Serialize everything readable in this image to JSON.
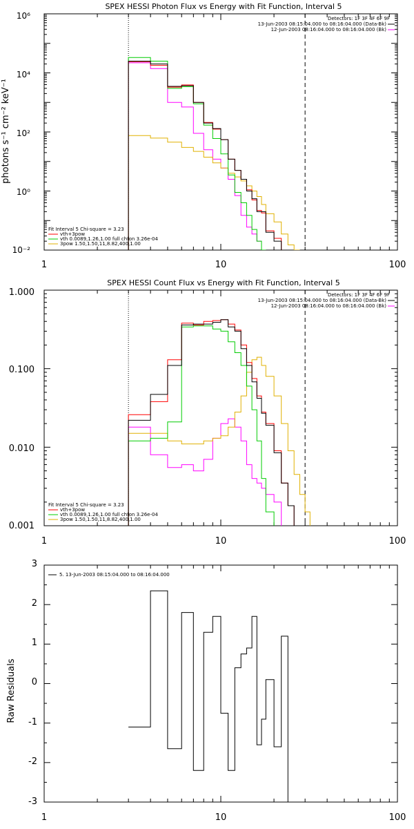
{
  "panels": [
    {
      "title": "SPEX HESSI Photon Flux vs Energy with Fit Function, Interval 5",
      "ylabel": "photons s⁻¹ cm⁻² keV⁻¹",
      "ytick_labels": [
        "10⁻²",
        "10⁰",
        "10²",
        "10⁴",
        "10⁶"
      ],
      "xtick_labels": [
        "1",
        "10",
        "100"
      ],
      "top_legend": [
        {
          "text": "Detectors: 1F 3F 4F 6F 9F",
          "color": ""
        },
        {
          "text": "13-Jun-2003 08:15:04.000 to 08:16:04.000 (Data-Bk)",
          "color": "#000000"
        },
        {
          "text": "12-Jun-2003 08:16:04.000 to 08:16:04.000 (Bk)",
          "color": "#ff00ff"
        }
      ],
      "fit_legend": [
        {
          "text": "Fit Interval 5   Chi-square = 3.23",
          "color": ""
        },
        {
          "text": "vth+3pow",
          "color": "#ff0000"
        },
        {
          "text": "vth 0.0089,1.26,1.00  full chfon 3.26e-04",
          "color": "#00cc00"
        },
        {
          "text": "3pow 1.50,1.50,11,8.82,400,1.00",
          "color": "#e0b000"
        }
      ]
    },
    {
      "title": "SPEX HESSI Count Flux vs Energy with Fit Function, Interval 5",
      "ylabel": "",
      "ytick_labels": [
        "0.001",
        "0.010",
        "0.100",
        "1.000"
      ],
      "xtick_labels": [
        "1",
        "10",
        "100"
      ],
      "top_legend": [
        {
          "text": "Detectors: 1F 3F 4F 6F 9F",
          "color": ""
        },
        {
          "text": "13-Jun-2003 08:15:04.000 to 08:16:04.000 (Data-Bk)",
          "color": "#000000"
        },
        {
          "text": "12-Jun-2003 08:16:04.000 to 08:16:04.000 (Bk)",
          "color": "#ff00ff"
        }
      ],
      "fit_legend": [
        {
          "text": "Fit Interval 5   Chi-square = 3.23",
          "color": ""
        },
        {
          "text": "vth+3pow",
          "color": "#ff0000"
        },
        {
          "text": "vth 0.0089,1.26,1.00  full chfon 3.26e-04",
          "color": "#00cc00"
        },
        {
          "text": "3pow 1.50,1.50,11,8.82,400,1.00",
          "color": "#e0b000"
        }
      ]
    },
    {
      "title": "",
      "ylabel": "Raw Residuals",
      "ytick_labels": [
        "-3",
        "-2",
        "-1",
        "0",
        "1",
        "2",
        "3"
      ],
      "xtick_labels": [
        "1",
        "10",
        "100"
      ],
      "top_legend": [
        {
          "text": "5. 13-Jun-2003 08:15:04.000 to 08:16:04.000",
          "color": "#000000"
        }
      ],
      "fit_legend": []
    }
  ],
  "chart_data": [
    {
      "type": "line",
      "title": "SPEX HESSI Photon Flux vs Energy with Fit Function, Interval 5",
      "xlabel": "",
      "ylabel": "photons s⁻¹ cm⁻² keV⁻¹",
      "xscale": "log",
      "yscale": "log",
      "xlim": [
        1,
        100
      ],
      "ylim": [
        0.01,
        1000000
      ],
      "x_edges": [
        3,
        4,
        5,
        6,
        7,
        8,
        9,
        10,
        11,
        12,
        13,
        14,
        15,
        16,
        17,
        18,
        20,
        22,
        24,
        26,
        28,
        30
      ],
      "series": [
        {
          "color": "#000000",
          "values": [
            25000,
            20000,
            3500,
            3700,
            1000,
            200,
            130,
            55,
            12,
            5,
            2.5,
            1,
            0.55,
            0.2,
            0.2,
            0.04,
            0.02,
            null,
            null,
            null,
            null
          ]
        },
        {
          "color": "#ff0000",
          "values": [
            24000,
            18000,
            3300,
            3900,
            1000,
            210,
            125,
            55,
            12,
            5,
            2.5,
            1.1,
            0.5,
            0.22,
            0.18,
            0.045,
            0.025,
            null,
            null,
            null,
            null
          ]
        },
        {
          "color": "#00cc00",
          "values": [
            33000,
            25000,
            3000,
            3400,
            900,
            170,
            60,
            18,
            3.5,
            0.9,
            0.4,
            0.15,
            0.05,
            0.02,
            0.01,
            null,
            null,
            null,
            null,
            null,
            null
          ]
        },
        {
          "color": "#e0b000",
          "values": [
            75,
            62,
            45,
            30,
            22,
            14,
            9,
            6,
            4,
            3,
            2.2,
            1.5,
            1,
            0.65,
            0.35,
            0.17,
            0.09,
            0.035,
            0.015,
            0.008,
            null
          ]
        },
        {
          "color": "#ff00ff",
          "values": [
            22000,
            14000,
            1000,
            700,
            90,
            25,
            12,
            6,
            2.5,
            0.7,
            0.15,
            0.06,
            0.035,
            0.02,
            0.01,
            null,
            null,
            null,
            null,
            null,
            null
          ]
        }
      ],
      "vlines": [
        {
          "x": 3,
          "style": "dotted"
        },
        {
          "x": 30,
          "style": "dashed"
        }
      ]
    },
    {
      "type": "line",
      "title": "SPEX HESSI Count Flux vs Energy with Fit Function, Interval 5",
      "xlabel": "",
      "ylabel": "",
      "xscale": "log",
      "yscale": "log",
      "xlim": [
        1,
        100
      ],
      "ylim": [
        0.001,
        1.0
      ],
      "x_edges": [
        3,
        4,
        5,
        6,
        7,
        8,
        9,
        10,
        11,
        12,
        13,
        14,
        15,
        16,
        17,
        18,
        20,
        22,
        24,
        26,
        28,
        30,
        32
      ],
      "series": [
        {
          "color": "#000000",
          "values": [
            0.022,
            0.047,
            0.11,
            0.36,
            0.37,
            0.37,
            0.39,
            0.42,
            0.34,
            0.3,
            0.18,
            0.11,
            0.068,
            0.042,
            0.027,
            0.019,
            0.0085,
            0.0035,
            0.0018,
            0.001,
            null,
            null
          ]
        },
        {
          "color": "#ff0000",
          "values": [
            0.026,
            0.038,
            0.13,
            0.38,
            0.36,
            0.4,
            0.41,
            0.42,
            0.37,
            0.31,
            0.2,
            0.12,
            0.075,
            0.045,
            0.028,
            0.02,
            0.009,
            0.0035,
            0.0018,
            0.001,
            null,
            null
          ]
        },
        {
          "color": "#00cc00",
          "values": [
            0.012,
            0.013,
            0.021,
            0.34,
            0.35,
            0.35,
            0.32,
            0.3,
            0.22,
            0.16,
            0.11,
            0.06,
            0.03,
            0.012,
            0.004,
            0.0015,
            null,
            null,
            null,
            null,
            null,
            null
          ]
        },
        {
          "color": "#e0b000",
          "values": [
            0.015,
            0.015,
            0.012,
            0.011,
            0.011,
            0.012,
            0.013,
            0.014,
            0.018,
            0.028,
            0.045,
            0.09,
            0.13,
            0.14,
            0.11,
            0.08,
            0.045,
            0.02,
            0.009,
            0.0045,
            0.0025,
            0.0015
          ]
        },
        {
          "color": "#ff00ff",
          "values": [
            0.018,
            0.008,
            0.0055,
            0.006,
            0.005,
            0.007,
            0.013,
            0.02,
            0.023,
            0.018,
            0.012,
            0.006,
            0.004,
            0.0035,
            0.003,
            0.0025,
            0.002,
            null,
            null,
            null,
            null,
            null
          ]
        }
      ],
      "vlines": [
        {
          "x": 3,
          "style": "dotted"
        },
        {
          "x": 30,
          "style": "dashed"
        }
      ]
    },
    {
      "type": "line",
      "title": "",
      "xlabel": "",
      "ylabel": "Raw Residuals",
      "xscale": "log",
      "yscale": "linear",
      "xlim": [
        1,
        100
      ],
      "ylim": [
        -3,
        3
      ],
      "x_edges": [
        3,
        4,
        5,
        6,
        7,
        8,
        9,
        10,
        11,
        12,
        13,
        14,
        15,
        16,
        17,
        18,
        20,
        22,
        24,
        26,
        28,
        30
      ],
      "series": [
        {
          "color": "#000000",
          "values": [
            -1.1,
            2.35,
            -1.65,
            1.8,
            -2.2,
            1.3,
            1.7,
            -0.75,
            -2.2,
            0.4,
            0.75,
            0.9,
            1.7,
            -1.55,
            -0.9,
            0.1,
            -1.6,
            1.2
          ]
        }
      ],
      "vlines": []
    }
  ]
}
